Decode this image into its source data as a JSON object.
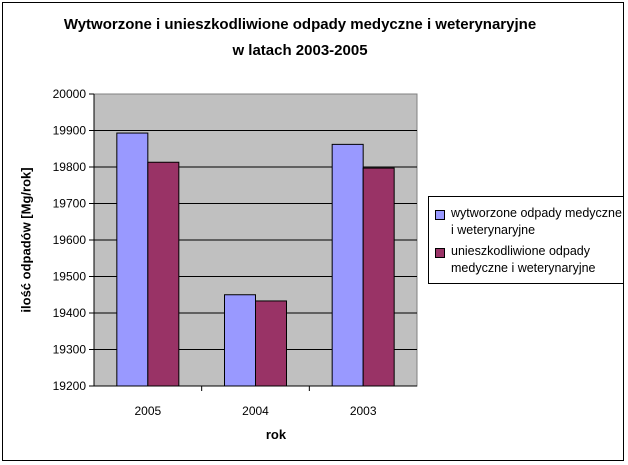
{
  "chart_data": {
    "type": "bar",
    "title": "Wytworzone i unieszkodliwione odpady medyczne i weterynaryjne w latach 2003-2005",
    "xlabel": "rok",
    "ylabel": "ilość odpadów [Mg/rok]",
    "categories": [
      "2005",
      "2004",
      "2003"
    ],
    "ylim": [
      19200,
      20000
    ],
    "yticks": [
      19200,
      19300,
      19400,
      19500,
      19600,
      19700,
      19800,
      19900,
      20000
    ],
    "grid": true,
    "legend_position": "right",
    "plot_background": "#c0c0c0",
    "series": [
      {
        "name": "wytworzone odpady medyczne i weterynaryjne",
        "values": [
          19893,
          19450,
          19862
        ],
        "color": "#9999ff"
      },
      {
        "name": "unieszkodliwione odpady medyczne i weterynaryjne",
        "values": [
          19813,
          19433,
          19797
        ],
        "color": "#993366"
      }
    ]
  }
}
